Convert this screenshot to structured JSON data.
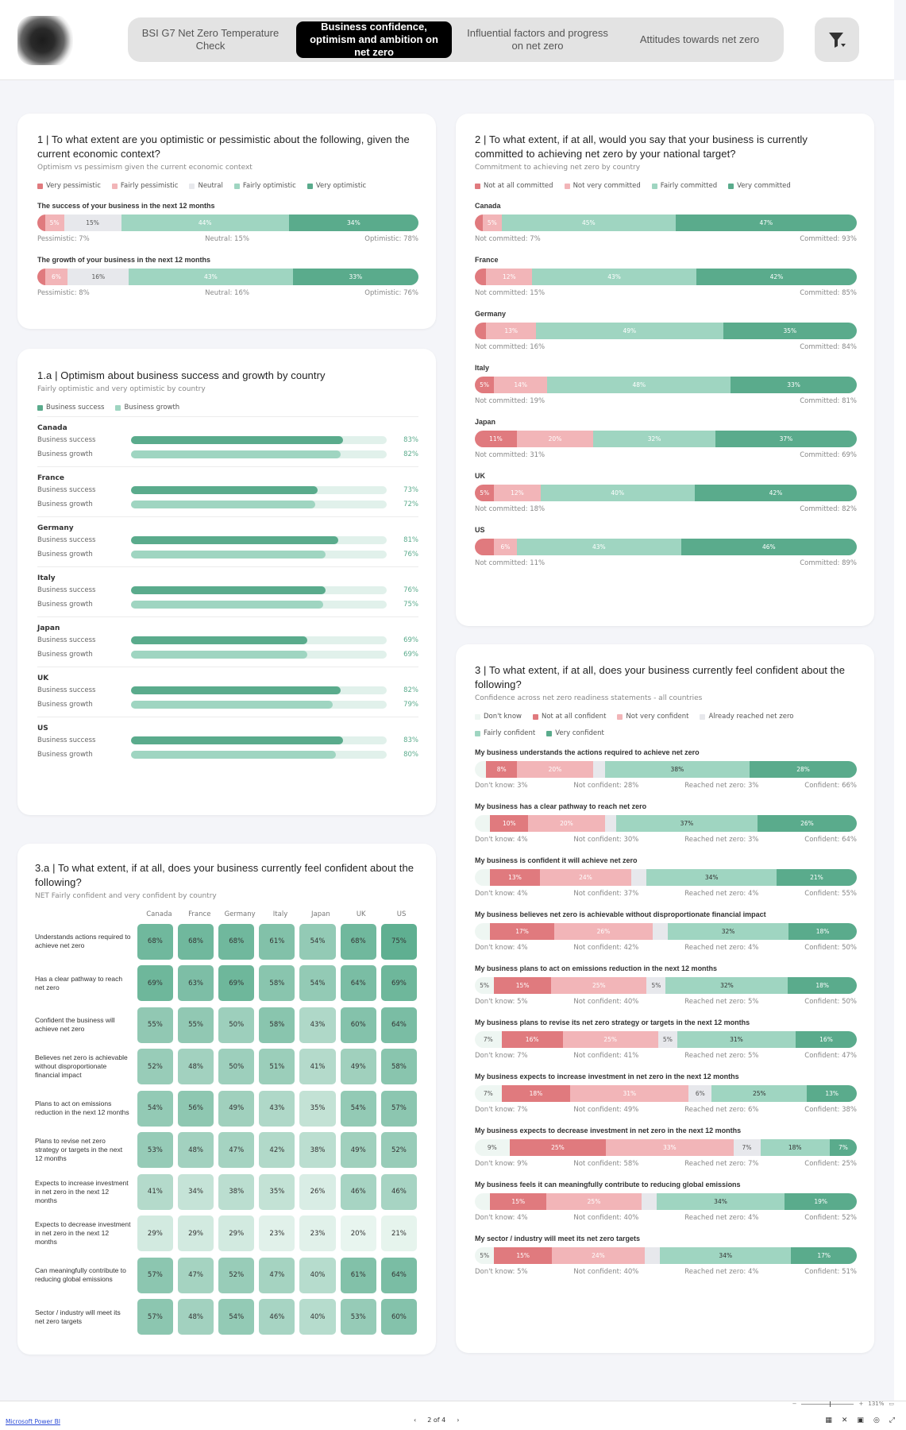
{
  "nav": {
    "tabs": [
      {
        "label": "BSI G7 Net Zero Temperature Check",
        "active": false
      },
      {
        "label": "Business confidence, optimism and ambition on net zero",
        "active": true
      },
      {
        "label": "Influential factors and progress on net zero",
        "active": false
      },
      {
        "label": "Attitudes towards net zero",
        "active": false
      }
    ],
    "filter_icon": "filter-icon"
  },
  "colors": {
    "very_neg": "#e07a7e",
    "neg": "#f2b5b8",
    "neutral": "#e7e8ec",
    "pos": "#9fd5c1",
    "very_pos": "#5aab8c",
    "dontknow": "#eef6f2"
  },
  "q1": {
    "title": "1 | To what extent are you optimistic or pessimistic about the following, given the current economic context?",
    "subtitle": "Optimism vs pessimism given the current economic context",
    "legend": [
      "Very pessimistic",
      "Fairly pessimistic",
      "Neutral",
      "Fairly optimistic",
      "Very optimistic"
    ],
    "items": [
      {
        "label": "The success of your business in the next 12 months",
        "segments": [
          2,
          5,
          15,
          44,
          34
        ],
        "texts": [
          "",
          "5%",
          "15%",
          "44%",
          "34%"
        ],
        "foot": [
          "Pessimistic: 7%",
          "Neutral: 15%",
          "Optimistic: 78%"
        ]
      },
      {
        "label": "The growth of your business in the next 12 months",
        "segments": [
          2,
          6,
          16,
          43,
          33
        ],
        "texts": [
          "",
          "6%",
          "16%",
          "43%",
          "33%"
        ],
        "foot": [
          "Pessimistic: 8%",
          "Neutral: 16%",
          "Optimistic: 76%"
        ]
      }
    ]
  },
  "q1a": {
    "title": "1.a | Optimism about business success and growth by country",
    "subtitle": "Fairly optimistic and very optimistic by country",
    "legend": [
      "Business success",
      "Business growth"
    ],
    "row_labels": [
      "Business success",
      "Business growth"
    ],
    "countries": [
      {
        "name": "Canada",
        "success": 83,
        "growth": 82
      },
      {
        "name": "France",
        "success": 73,
        "growth": 72
      },
      {
        "name": "Germany",
        "success": 81,
        "growth": 76
      },
      {
        "name": "Italy",
        "success": 76,
        "growth": 75
      },
      {
        "name": "Japan",
        "success": 69,
        "growth": 69
      },
      {
        "name": "UK",
        "success": 82,
        "growth": 79
      },
      {
        "name": "US",
        "success": 83,
        "growth": 80
      }
    ]
  },
  "q3a": {
    "title": "3.a | To what extent, if at all, does your business currently feel confident about the following?",
    "subtitle": "NET Fairly confident and very confident by country",
    "columns": [
      "Canada",
      "France",
      "Germany",
      "Italy",
      "Japan",
      "UK",
      "US"
    ],
    "rows": [
      {
        "label": "Understands actions required to achieve net zero",
        "values": [
          68,
          68,
          68,
          61,
          54,
          68,
          75
        ]
      },
      {
        "label": "Has a clear pathway to reach net zero",
        "values": [
          69,
          63,
          69,
          58,
          54,
          64,
          69
        ]
      },
      {
        "label": "Confident the business will achieve net zero",
        "values": [
          55,
          55,
          50,
          58,
          43,
          60,
          64
        ]
      },
      {
        "label": "Believes net zero is achievable without disproportionate financial impact",
        "values": [
          52,
          48,
          50,
          51,
          41,
          49,
          58
        ]
      },
      {
        "label": "Plans to act on emissions reduction in the next 12 months",
        "values": [
          54,
          56,
          49,
          43,
          35,
          54,
          57
        ]
      },
      {
        "label": "Plans to revise net zero strategy or targets in the next 12 months",
        "values": [
          53,
          48,
          47,
          42,
          38,
          49,
          52
        ]
      },
      {
        "label": "Expects to increase investment in net zero in the next 12 months",
        "values": [
          41,
          34,
          38,
          35,
          26,
          46,
          46
        ]
      },
      {
        "label": "Expects to decrease investment in net zero in the next 12 months",
        "values": [
          29,
          29,
          29,
          23,
          23,
          20,
          21
        ]
      },
      {
        "label": "Can meaningfully contribute to reducing global emissions",
        "values": [
          57,
          47,
          52,
          47,
          40,
          61,
          64
        ]
      },
      {
        "label": "Sector / industry will meet its net zero targets",
        "values": [
          57,
          48,
          54,
          46,
          40,
          53,
          60
        ]
      }
    ]
  },
  "q2": {
    "title": "2 | To what extent, if at all, would you say that your business is currently committed to achieving net zero by your national target?",
    "subtitle": "Commitment to achieving net zero by country",
    "legend": [
      "Not at all committed",
      "Not very committed",
      "Fairly committed",
      "Very committed"
    ],
    "items": [
      {
        "label": "Canada",
        "segments": [
          2,
          5,
          45,
          47
        ],
        "texts": [
          "",
          "5%",
          "45%",
          "47%"
        ],
        "foot": [
          "Not committed: 7%",
          "Committed: 93%"
        ]
      },
      {
        "label": "France",
        "segments": [
          3,
          12,
          43,
          42
        ],
        "texts": [
          "",
          "12%",
          "43%",
          "42%"
        ],
        "foot": [
          "Not committed: 15%",
          "Committed: 85%"
        ]
      },
      {
        "label": "Germany",
        "segments": [
          3,
          13,
          49,
          35
        ],
        "texts": [
          "",
          "13%",
          "49%",
          "35%"
        ],
        "foot": [
          "Not committed: 16%",
          "Committed: 84%"
        ]
      },
      {
        "label": "Italy",
        "segments": [
          5,
          14,
          48,
          33
        ],
        "texts": [
          "5%",
          "14%",
          "48%",
          "33%"
        ],
        "foot": [
          "Not committed: 19%",
          "Committed: 81%"
        ]
      },
      {
        "label": "Japan",
        "segments": [
          11,
          20,
          32,
          37
        ],
        "texts": [
          "11%",
          "20%",
          "32%",
          "37%"
        ],
        "foot": [
          "Not committed: 31%",
          "Committed: 69%"
        ]
      },
      {
        "label": "UK",
        "segments": [
          5,
          12,
          40,
          42
        ],
        "texts": [
          "5%",
          "12%",
          "40%",
          "42%"
        ],
        "foot": [
          "Not committed: 18%",
          "Committed: 82%"
        ]
      },
      {
        "label": "US",
        "segments": [
          5,
          6,
          43,
          46
        ],
        "texts": [
          "",
          "6%",
          "43%",
          "46%"
        ],
        "foot": [
          "Not committed: 11%",
          "Committed: 89%"
        ]
      }
    ]
  },
  "q3": {
    "title": "3 | To what extent, if at all, does your business currently feel confident about the following?",
    "subtitle": "Confidence across net zero readiness statements - all countries",
    "legend": [
      "Don't know",
      "Not at all confident",
      "Not very confident",
      "Already reached net zero",
      "Fairly confident",
      "Very confident"
    ],
    "items": [
      {
        "label": "My business understands the actions required to achieve net zero",
        "segments": [
          3,
          8,
          20,
          3,
          38,
          28
        ],
        "texts": [
          "",
          "8%",
          "20%",
          "",
          "38%",
          "28%"
        ],
        "foot": [
          "Don't know: 3%",
          "Not confident: 28%",
          "Reached net zero: 3%",
          "Confident: 66%"
        ]
      },
      {
        "label": "My business has a clear pathway to reach net zero",
        "segments": [
          4,
          10,
          20,
          3,
          37,
          26
        ],
        "texts": [
          "",
          "10%",
          "20%",
          "",
          "37%",
          "26%"
        ],
        "foot": [
          "Don't know: 4%",
          "Not confident: 30%",
          "Reached net zero: 3%",
          "Confident: 64%"
        ]
      },
      {
        "label": "My business is confident it will achieve net zero",
        "segments": [
          4,
          13,
          24,
          4,
          34,
          21
        ],
        "texts": [
          "",
          "13%",
          "24%",
          "",
          "34%",
          "21%"
        ],
        "foot": [
          "Don't know: 4%",
          "Not confident: 37%",
          "Reached net zero: 4%",
          "Confident: 55%"
        ]
      },
      {
        "label": "My business believes net zero is achievable without disproportionate financial impact",
        "segments": [
          4,
          17,
          26,
          4,
          32,
          18
        ],
        "texts": [
          "",
          "17%",
          "26%",
          "",
          "32%",
          "18%"
        ],
        "foot": [
          "Don't know: 4%",
          "Not confident: 42%",
          "Reached net zero: 4%",
          "Confident: 50%"
        ]
      },
      {
        "label": "My business plans to act on emissions reduction in the next 12 months",
        "segments": [
          5,
          15,
          25,
          5,
          32,
          18
        ],
        "texts": [
          "5%",
          "15%",
          "25%",
          "5%",
          "32%",
          "18%"
        ],
        "foot": [
          "Don't know: 5%",
          "Not confident: 40%",
          "Reached net zero: 5%",
          "Confident: 50%"
        ]
      },
      {
        "label": "My business plans to revise its net zero strategy or targets in the next 12 months",
        "segments": [
          7,
          16,
          25,
          5,
          31,
          16
        ],
        "texts": [
          "7%",
          "16%",
          "25%",
          "5%",
          "31%",
          "16%"
        ],
        "foot": [
          "Don't know: 7%",
          "Not confident: 41%",
          "Reached net zero: 5%",
          "Confident: 47%"
        ]
      },
      {
        "label": "My business expects to increase investment in net zero in the next 12 months",
        "segments": [
          7,
          18,
          31,
          6,
          25,
          13
        ],
        "texts": [
          "7%",
          "18%",
          "31%",
          "6%",
          "25%",
          "13%"
        ],
        "foot": [
          "Don't know: 7%",
          "Not confident: 49%",
          "Reached net zero: 6%",
          "Confident: 38%"
        ]
      },
      {
        "label": "My business expects to decrease investment in net zero in the next 12 months",
        "segments": [
          9,
          25,
          33,
          7,
          18,
          7
        ],
        "texts": [
          "9%",
          "25%",
          "33%",
          "7%",
          "18%",
          "7%"
        ],
        "foot": [
          "Don't know: 9%",
          "Not confident: 58%",
          "Reached net zero: 7%",
          "Confident: 25%"
        ]
      },
      {
        "label": "My business feels it can meaningfully contribute to reducing global emissions",
        "segments": [
          4,
          15,
          25,
          4,
          34,
          19
        ],
        "texts": [
          "",
          "15%",
          "25%",
          "",
          "34%",
          "19%"
        ],
        "foot": [
          "Don't know: 4%",
          "Not confident: 40%",
          "Reached net zero: 4%",
          "Confident: 52%"
        ]
      },
      {
        "label": "My sector / industry will meet its net zero targets",
        "segments": [
          5,
          15,
          24,
          4,
          34,
          17
        ],
        "texts": [
          "5%",
          "15%",
          "24%",
          "",
          "34%",
          "17%"
        ],
        "foot": [
          "Don't know: 5%",
          "Not confident: 40%",
          "Reached net zero: 4%",
          "Confident: 51%"
        ]
      }
    ]
  },
  "statusbar": {
    "brand": "Microsoft Power BI",
    "page": "2 of 4",
    "zoom": "131%"
  }
}
